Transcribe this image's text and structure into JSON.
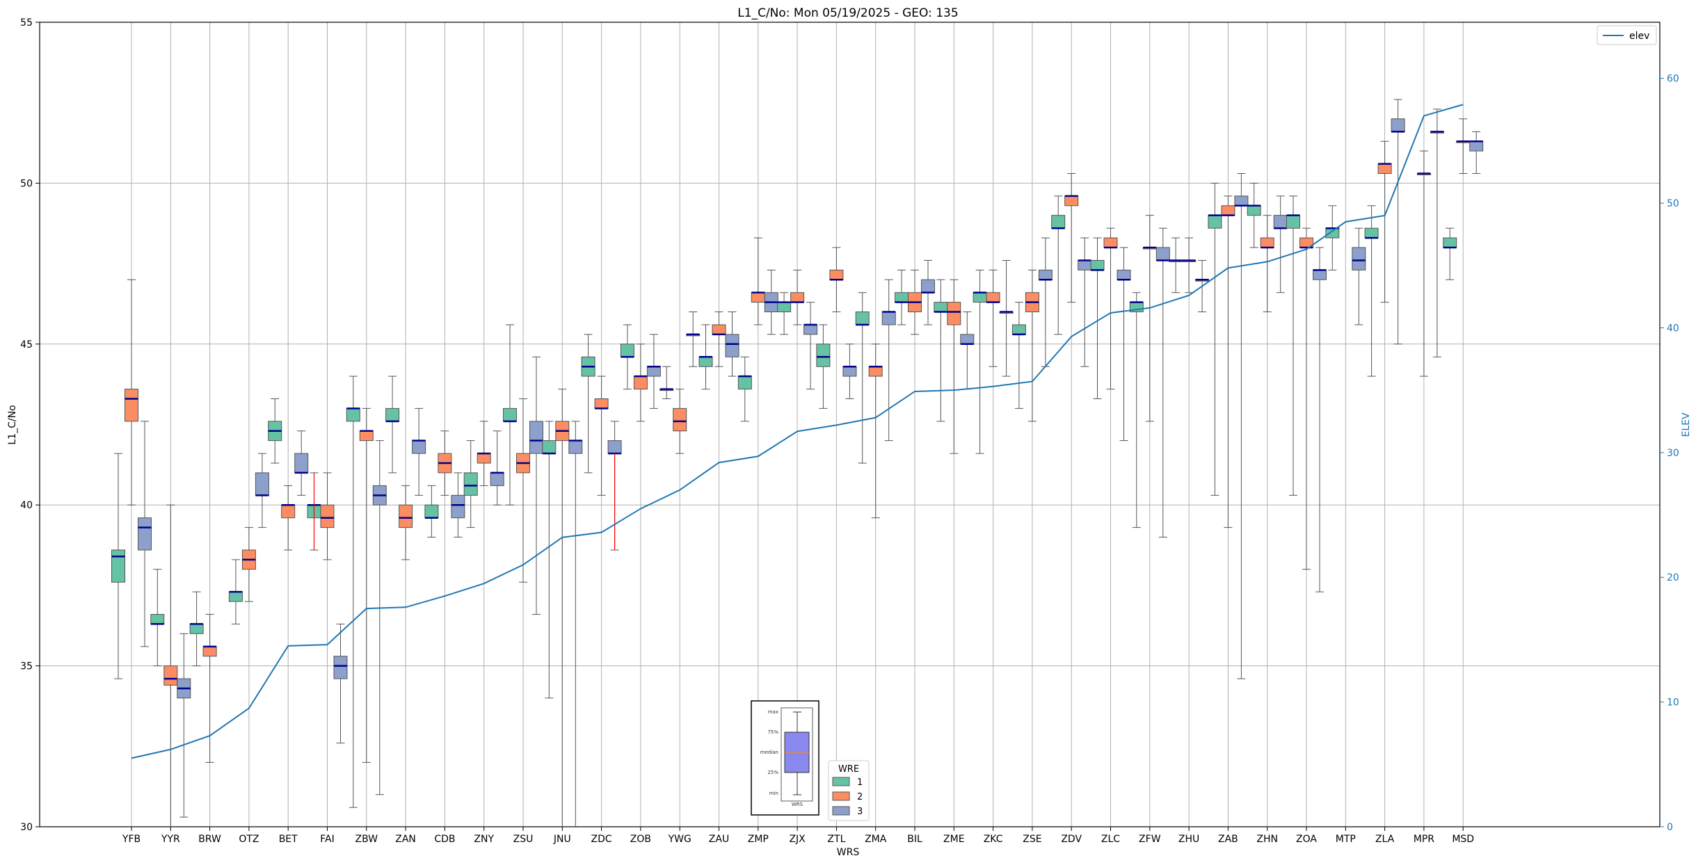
{
  "chart_data": {
    "type": "boxplot",
    "title": "L1_C/No: Mon 05/19/2025 - GEO: 135",
    "xlabel": "WRS",
    "ylabel": "L1_C/No",
    "y2label": "ELEV",
    "ylim": [
      30,
      55
    ],
    "y2lim": [
      0,
      64.5
    ],
    "yticks": [
      30,
      35,
      40,
      45,
      50,
      55
    ],
    "y2ticks": [
      0,
      10,
      20,
      30,
      40,
      50,
      60
    ],
    "grid": true,
    "categories": [
      "YFB",
      "YYR",
      "BRW",
      "OTZ",
      "BET",
      "FAI",
      "ZBW",
      "ZAN",
      "CDB",
      "ZNY",
      "ZSU",
      "JNU",
      "ZDC",
      "ZOB",
      "YWG",
      "ZAU",
      "ZMP",
      "ZJX",
      "ZTL",
      "ZMA",
      "BIL",
      "ZME",
      "ZKC",
      "ZSE",
      "ZDV",
      "ZLC",
      "ZFW",
      "ZHU",
      "ZAB",
      "ZHN",
      "ZOA",
      "MTP",
      "ZLA",
      "MPR",
      "MSD"
    ],
    "wre_legend": {
      "title": "WRE",
      "items": [
        {
          "name": "1",
          "color": "#66c2a5"
        },
        {
          "name": "2",
          "color": "#fc8d62"
        },
        {
          "name": "3",
          "color": "#8da0cb"
        }
      ]
    },
    "elev_legend": {
      "name": "elev",
      "color": "#1f77b4"
    },
    "median_color": "#00008b",
    "elev": [
      5.5,
      6.2,
      7.3,
      9.5,
      14.5,
      14.6,
      17.5,
      17.6,
      18.5,
      19.5,
      21,
      23.2,
      23.6,
      25.5,
      27,
      29.2,
      29.7,
      31.7,
      32.2,
      32.8,
      34.9,
      35,
      35.3,
      35.7,
      39.3,
      41.2,
      41.6,
      42.6,
      44.8,
      45.3,
      46.3,
      48.5,
      49,
      57,
      57.9
    ],
    "boxes": [
      {
        "cat": "YFB",
        "wre": 1,
        "min": 34.6,
        "q1": 37.6,
        "median": 38.4,
        "q3": 38.6,
        "max": 41.6
      },
      {
        "cat": "YFB",
        "wre": 2,
        "min": 40.0,
        "q1": 42.6,
        "median": 43.3,
        "q3": 43.6,
        "max": 47.0
      },
      {
        "cat": "YFB",
        "wre": 3,
        "min": 35.6,
        "q1": 38.6,
        "median": 39.3,
        "q3": 39.6,
        "max": 42.6
      },
      {
        "cat": "YYR",
        "wre": 1,
        "min": 35.0,
        "q1": 36.3,
        "median": 36.3,
        "q3": 36.6,
        "max": 38.0
      },
      {
        "cat": "YYR",
        "wre": 2,
        "min": 30.0,
        "q1": 34.4,
        "median": 34.6,
        "q3": 35.0,
        "max": 40.0
      },
      {
        "cat": "YYR",
        "wre": 3,
        "min": 30.3,
        "q1": 34.0,
        "median": 34.3,
        "q3": 34.6,
        "max": 36.0
      },
      {
        "cat": "BRW",
        "wre": 1,
        "min": 35.0,
        "q1": 36.0,
        "median": 36.3,
        "q3": 36.3,
        "max": 37.3
      },
      {
        "cat": "BRW",
        "wre": 2,
        "min": 32.0,
        "q1": 35.3,
        "median": 35.6,
        "q3": 35.6,
        "max": 36.6
      },
      {
        "cat": "OTZ",
        "wre": 1,
        "min": 36.3,
        "q1": 37.0,
        "median": 37.3,
        "q3": 37.3,
        "max": 38.3
      },
      {
        "cat": "OTZ",
        "wre": 2,
        "min": 37.0,
        "q1": 38.0,
        "median": 38.3,
        "q3": 38.6,
        "max": 39.3
      },
      {
        "cat": "OTZ",
        "wre": 3,
        "min": 39.3,
        "q1": 40.3,
        "median": 40.3,
        "q3": 41.0,
        "max": 41.6
      },
      {
        "cat": "BET",
        "wre": 1,
        "min": 41.3,
        "q1": 42.0,
        "median": 42.3,
        "q3": 42.6,
        "max": 43.3
      },
      {
        "cat": "BET",
        "wre": 2,
        "min": 38.6,
        "q1": 39.6,
        "median": 40.0,
        "q3": 40.0,
        "max": 40.6
      },
      {
        "cat": "BET",
        "wre": 3,
        "min": 40.3,
        "q1": 41.0,
        "median": 41.0,
        "q3": 41.6,
        "max": 42.3
      },
      {
        "cat": "FAI",
        "wre": 1,
        "min": 38.6,
        "q1": 39.6,
        "median": 40.0,
        "q3": 40.0,
        "max": 41.0
      },
      {
        "cat": "FAI",
        "wre": 2,
        "min": 38.3,
        "q1": 39.3,
        "median": 39.6,
        "q3": 40.0,
        "max": 41.0
      },
      {
        "cat": "FAI",
        "wre": 3,
        "min": 32.6,
        "q1": 34.6,
        "median": 35.0,
        "q3": 35.3,
        "max": 36.3
      },
      {
        "cat": "ZBW",
        "wre": 1,
        "min": 30.6,
        "q1": 42.6,
        "median": 43.0,
        "q3": 43.0,
        "max": 44.0
      },
      {
        "cat": "ZBW",
        "wre": 2,
        "min": 32.0,
        "q1": 42.0,
        "median": 42.3,
        "q3": 42.3,
        "max": 43.0
      },
      {
        "cat": "ZBW",
        "wre": 3,
        "min": 31.0,
        "q1": 40.0,
        "median": 40.3,
        "q3": 40.6,
        "max": 42.0
      },
      {
        "cat": "ZAN",
        "wre": 1,
        "min": 41.0,
        "q1": 42.6,
        "median": 42.6,
        "q3": 43.0,
        "max": 44.0
      },
      {
        "cat": "ZAN",
        "wre": 2,
        "min": 38.3,
        "q1": 39.3,
        "median": 39.6,
        "q3": 40.0,
        "max": 40.6
      },
      {
        "cat": "ZAN",
        "wre": 3,
        "min": 40.3,
        "q1": 41.6,
        "median": 42.0,
        "q3": 42.0,
        "max": 43.0
      },
      {
        "cat": "CDB",
        "wre": 1,
        "min": 39.0,
        "q1": 39.6,
        "median": 39.6,
        "q3": 40.0,
        "max": 40.6
      },
      {
        "cat": "CDB",
        "wre": 2,
        "min": 40.3,
        "q1": 41.0,
        "median": 41.3,
        "q3": 41.6,
        "max": 42.3
      },
      {
        "cat": "CDB",
        "wre": 3,
        "min": 39.0,
        "q1": 39.6,
        "median": 40.0,
        "q3": 40.3,
        "max": 41.0
      },
      {
        "cat": "ZNY",
        "wre": 1,
        "min": 39.3,
        "q1": 40.3,
        "median": 40.6,
        "q3": 41.0,
        "max": 42.0
      },
      {
        "cat": "ZNY",
        "wre": 2,
        "min": 40.6,
        "q1": 41.3,
        "median": 41.6,
        "q3": 41.6,
        "max": 42.6
      },
      {
        "cat": "ZNY",
        "wre": 3,
        "min": 40.0,
        "q1": 40.6,
        "median": 41.0,
        "q3": 41.0,
        "max": 42.3
      },
      {
        "cat": "ZSU",
        "wre": 1,
        "min": 40.0,
        "q1": 42.6,
        "median": 42.6,
        "q3": 43.0,
        "max": 45.6
      },
      {
        "cat": "ZSU",
        "wre": 2,
        "min": 37.6,
        "q1": 41.0,
        "median": 41.3,
        "q3": 41.6,
        "max": 43.3
      },
      {
        "cat": "ZSU",
        "wre": 3,
        "min": 36.6,
        "q1": 41.6,
        "median": 42.0,
        "q3": 42.6,
        "max": 44.6
      },
      {
        "cat": "JNU",
        "wre": 1,
        "min": 34.0,
        "q1": 41.6,
        "median": 41.6,
        "q3": 42.0,
        "max": 42.6
      },
      {
        "cat": "JNU",
        "wre": 2,
        "min": 30.0,
        "q1": 42.0,
        "median": 42.3,
        "q3": 42.6,
        "max": 43.6
      },
      {
        "cat": "JNU",
        "wre": 3,
        "min": 30.0,
        "q1": 41.6,
        "median": 42.0,
        "q3": 42.0,
        "max": 42.6
      },
      {
        "cat": "ZDC",
        "wre": 1,
        "min": 41.0,
        "q1": 44.0,
        "median": 44.3,
        "q3": 44.6,
        "max": 45.3
      },
      {
        "cat": "ZDC",
        "wre": 2,
        "min": 40.3,
        "q1": 43.0,
        "median": 43.0,
        "q3": 43.3,
        "max": 44.0
      },
      {
        "cat": "ZDC",
        "wre": 3,
        "min": 38.6,
        "q1": 41.6,
        "median": 41.6,
        "q3": 42.0,
        "max": 42.6
      },
      {
        "cat": "ZOB",
        "wre": 1,
        "min": 43.6,
        "q1": 44.6,
        "median": 44.6,
        "q3": 45.0,
        "max": 45.6
      },
      {
        "cat": "ZOB",
        "wre": 2,
        "min": 42.6,
        "q1": 43.6,
        "median": 44.0,
        "q3": 44.0,
        "max": 45.0
      },
      {
        "cat": "ZOB",
        "wre": 3,
        "min": 43.0,
        "q1": 44.0,
        "median": 44.3,
        "q3": 44.3,
        "max": 45.3
      },
      {
        "cat": "YWG",
        "wre": 1,
        "min": 43.3,
        "q1": 43.6,
        "median": 43.6,
        "q3": 43.6,
        "max": 44.3
      },
      {
        "cat": "YWG",
        "wre": 2,
        "min": 41.6,
        "q1": 42.3,
        "median": 42.6,
        "q3": 43.0,
        "max": 43.6
      },
      {
        "cat": "YWG",
        "wre": 3,
        "min": 44.3,
        "q1": 45.3,
        "median": 45.3,
        "q3": 45.3,
        "max": 46.0
      },
      {
        "cat": "ZAU",
        "wre": 1,
        "min": 43.6,
        "q1": 44.3,
        "median": 44.6,
        "q3": 44.6,
        "max": 45.6
      },
      {
        "cat": "ZAU",
        "wre": 2,
        "min": 44.3,
        "q1": 45.3,
        "median": 45.3,
        "q3": 45.6,
        "max": 46.0
      },
      {
        "cat": "ZAU",
        "wre": 3,
        "min": 44.0,
        "q1": 44.6,
        "median": 45.0,
        "q3": 45.3,
        "max": 46.0
      },
      {
        "cat": "ZMP",
        "wre": 1,
        "min": 42.6,
        "q1": 43.6,
        "median": 44.0,
        "q3": 44.0,
        "max": 44.6
      },
      {
        "cat": "ZMP",
        "wre": 2,
        "min": 45.6,
        "q1": 46.3,
        "median": 46.6,
        "q3": 46.6,
        "max": 48.3
      },
      {
        "cat": "ZMP",
        "wre": 3,
        "min": 45.3,
        "q1": 46.0,
        "median": 46.3,
        "q3": 46.6,
        "max": 47.3
      },
      {
        "cat": "ZJX",
        "wre": 1,
        "min": 45.3,
        "q1": 46.0,
        "median": 46.3,
        "q3": 46.3,
        "max": 46.6
      },
      {
        "cat": "ZJX",
        "wre": 2,
        "min": 45.6,
        "q1": 46.3,
        "median": 46.3,
        "q3": 46.6,
        "max": 47.3
      },
      {
        "cat": "ZJX",
        "wre": 3,
        "min": 43.6,
        "q1": 45.3,
        "median": 45.6,
        "q3": 45.6,
        "max": 46.3
      },
      {
        "cat": "ZTL",
        "wre": 1,
        "min": 43.0,
        "q1": 44.3,
        "median": 44.6,
        "q3": 45.0,
        "max": 45.6
      },
      {
        "cat": "ZTL",
        "wre": 2,
        "min": 46.0,
        "q1": 47.0,
        "median": 47.0,
        "q3": 47.3,
        "max": 48.0
      },
      {
        "cat": "ZTL",
        "wre": 3,
        "min": 43.3,
        "q1": 44.0,
        "median": 44.3,
        "q3": 44.3,
        "max": 45.0
      },
      {
        "cat": "ZMA",
        "wre": 1,
        "min": 41.3,
        "q1": 45.6,
        "median": 45.6,
        "q3": 46.0,
        "max": 46.6
      },
      {
        "cat": "ZMA",
        "wre": 2,
        "min": 39.6,
        "q1": 44.0,
        "median": 44.3,
        "q3": 44.3,
        "max": 45.0
      },
      {
        "cat": "ZMA",
        "wre": 3,
        "min": 42.0,
        "q1": 45.6,
        "median": 46.0,
        "q3": 46.0,
        "max": 47.0
      },
      {
        "cat": "BIL",
        "wre": 1,
        "min": 45.6,
        "q1": 46.3,
        "median": 46.3,
        "q3": 46.6,
        "max": 47.3
      },
      {
        "cat": "BIL",
        "wre": 2,
        "min": 45.3,
        "q1": 46.0,
        "median": 46.3,
        "q3": 46.6,
        "max": 47.3
      },
      {
        "cat": "BIL",
        "wre": 3,
        "min": 45.6,
        "q1": 46.6,
        "median": 46.6,
        "q3": 47.0,
        "max": 47.6
      },
      {
        "cat": "ZME",
        "wre": 1,
        "min": 42.6,
        "q1": 46.0,
        "median": 46.0,
        "q3": 46.3,
        "max": 47.0
      },
      {
        "cat": "ZME",
        "wre": 2,
        "min": 41.6,
        "q1": 45.6,
        "median": 46.0,
        "q3": 46.3,
        "max": 47.0
      },
      {
        "cat": "ZME",
        "wre": 3,
        "min": 43.6,
        "q1": 45.0,
        "median": 45.0,
        "q3": 45.3,
        "max": 46.0
      },
      {
        "cat": "ZKC",
        "wre": 1,
        "min": 41.6,
        "q1": 46.3,
        "median": 46.6,
        "q3": 46.6,
        "max": 47.3
      },
      {
        "cat": "ZKC",
        "wre": 2,
        "min": 44.3,
        "q1": 46.3,
        "median": 46.3,
        "q3": 46.6,
        "max": 47.3
      },
      {
        "cat": "ZKC",
        "wre": 3,
        "min": 44.0,
        "q1": 46.0,
        "median": 46.0,
        "q3": 46.0,
        "max": 47.6
      },
      {
        "cat": "ZSE",
        "wre": 1,
        "min": 43.0,
        "q1": 45.3,
        "median": 45.3,
        "q3": 45.6,
        "max": 46.3
      },
      {
        "cat": "ZSE",
        "wre": 2,
        "min": 42.6,
        "q1": 46.0,
        "median": 46.3,
        "q3": 46.6,
        "max": 47.3
      },
      {
        "cat": "ZSE",
        "wre": 3,
        "min": 44.3,
        "q1": 47.0,
        "median": 47.0,
        "q3": 47.3,
        "max": 48.3
      },
      {
        "cat": "ZDV",
        "wre": 1,
        "min": 45.3,
        "q1": 48.6,
        "median": 48.6,
        "q3": 49.0,
        "max": 49.6
      },
      {
        "cat": "ZDV",
        "wre": 2,
        "min": 46.3,
        "q1": 49.3,
        "median": 49.6,
        "q3": 49.6,
        "max": 50.3
      },
      {
        "cat": "ZDV",
        "wre": 3,
        "min": 44.3,
        "q1": 47.3,
        "median": 47.6,
        "q3": 47.6,
        "max": 48.3
      },
      {
        "cat": "ZLC",
        "wre": 1,
        "min": 43.3,
        "q1": 47.3,
        "median": 47.3,
        "q3": 47.6,
        "max": 48.3
      },
      {
        "cat": "ZLC",
        "wre": 2,
        "min": 43.6,
        "q1": 48.0,
        "median": 48.0,
        "q3": 48.3,
        "max": 48.6
      },
      {
        "cat": "ZLC",
        "wre": 3,
        "min": 42.0,
        "q1": 47.0,
        "median": 47.0,
        "q3": 47.3,
        "max": 48.0
      },
      {
        "cat": "ZFW",
        "wre": 1,
        "min": 39.3,
        "q1": 46.0,
        "median": 46.3,
        "q3": 46.3,
        "max": 46.6
      },
      {
        "cat": "ZFW",
        "wre": 2,
        "min": 42.6,
        "q1": 48.0,
        "median": 48.0,
        "q3": 48.0,
        "max": 49.0
      },
      {
        "cat": "ZFW",
        "wre": 3,
        "min": 39.0,
        "q1": 47.6,
        "median": 47.6,
        "q3": 48.0,
        "max": 48.6
      },
      {
        "cat": "ZHU",
        "wre": 1,
        "min": 46.6,
        "q1": 47.6,
        "median": 47.6,
        "q3": 47.6,
        "max": 48.3
      },
      {
        "cat": "ZHU",
        "wre": 2,
        "min": 46.6,
        "q1": 47.6,
        "median": 47.6,
        "q3": 47.6,
        "max": 48.3
      },
      {
        "cat": "ZHU",
        "wre": 3,
        "min": 46.0,
        "q1": 47.0,
        "median": 47.0,
        "q3": 47.0,
        "max": 47.6
      },
      {
        "cat": "ZAB",
        "wre": 1,
        "min": 40.3,
        "q1": 48.6,
        "median": 49.0,
        "q3": 49.0,
        "max": 50.0
      },
      {
        "cat": "ZAB",
        "wre": 2,
        "min": 39.3,
        "q1": 49.0,
        "median": 49.0,
        "q3": 49.3,
        "max": 49.6
      },
      {
        "cat": "ZAB",
        "wre": 3,
        "min": 34.6,
        "q1": 49.3,
        "median": 49.3,
        "q3": 49.6,
        "max": 50.3
      },
      {
        "cat": "ZHN",
        "wre": 1,
        "min": 48.0,
        "q1": 49.0,
        "median": 49.3,
        "q3": 49.3,
        "max": 50.0
      },
      {
        "cat": "ZHN",
        "wre": 2,
        "min": 46.0,
        "q1": 48.0,
        "median": 48.0,
        "q3": 48.3,
        "max": 49.0
      },
      {
        "cat": "ZHN",
        "wre": 3,
        "min": 46.6,
        "q1": 48.6,
        "median": 48.6,
        "q3": 49.0,
        "max": 49.6
      },
      {
        "cat": "ZOA",
        "wre": 1,
        "min": 40.3,
        "q1": 48.6,
        "median": 49.0,
        "q3": 49.0,
        "max": 49.6
      },
      {
        "cat": "ZOA",
        "wre": 2,
        "min": 38.0,
        "q1": 48.0,
        "median": 48.0,
        "q3": 48.3,
        "max": 48.6
      },
      {
        "cat": "ZOA",
        "wre": 3,
        "min": 37.3,
        "q1": 47.0,
        "median": 47.3,
        "q3": 47.3,
        "max": 48.0
      },
      {
        "cat": "MTP",
        "wre": 1,
        "min": 47.3,
        "q1": 48.3,
        "median": 48.6,
        "q3": 48.6,
        "max": 49.3
      },
      {
        "cat": "MTP",
        "wre": 3,
        "min": 45.6,
        "q1": 47.3,
        "median": 47.6,
        "q3": 48.0,
        "max": 48.6
      },
      {
        "cat": "ZLA",
        "wre": 1,
        "min": 44.0,
        "q1": 48.3,
        "median": 48.3,
        "q3": 48.6,
        "max": 49.3
      },
      {
        "cat": "ZLA",
        "wre": 2,
        "min": 46.3,
        "q1": 50.3,
        "median": 50.6,
        "q3": 50.6,
        "max": 51.3
      },
      {
        "cat": "ZLA",
        "wre": 3,
        "min": 45.0,
        "q1": 51.6,
        "median": 51.6,
        "q3": 52.0,
        "max": 52.6
      },
      {
        "cat": "MPR",
        "wre": 2,
        "min": 44.0,
        "q1": 50.3,
        "median": 50.3,
        "q3": 50.3,
        "max": 51.0
      },
      {
        "cat": "MPR",
        "wre": 3,
        "min": 44.6,
        "q1": 51.6,
        "median": 51.6,
        "q3": 51.6,
        "max": 52.3
      },
      {
        "cat": "MSD",
        "wre": 1,
        "min": 47.0,
        "q1": 48.0,
        "median": 48.0,
        "q3": 48.3,
        "max": 48.6
      },
      {
        "cat": "MSD",
        "wre": 2,
        "min": 50.3,
        "q1": 51.3,
        "median": 51.3,
        "q3": 51.3,
        "max": 52.0
      },
      {
        "cat": "MSD",
        "wre": 3,
        "min": 50.3,
        "q1": 51.0,
        "median": 51.3,
        "q3": 51.3,
        "max": 51.6
      }
    ],
    "red_whiskers": [
      {
        "cat": "FAI",
        "wre": 1,
        "from": 41.0,
        "to": 38.6
      },
      {
        "cat": "ZDC",
        "wre": 3,
        "from": 41.6,
        "to": 38.6
      }
    ],
    "inset_key": {
      "labels": [
        "max",
        "75%",
        "median",
        "25%",
        "min"
      ],
      "caption": "WRS"
    }
  }
}
